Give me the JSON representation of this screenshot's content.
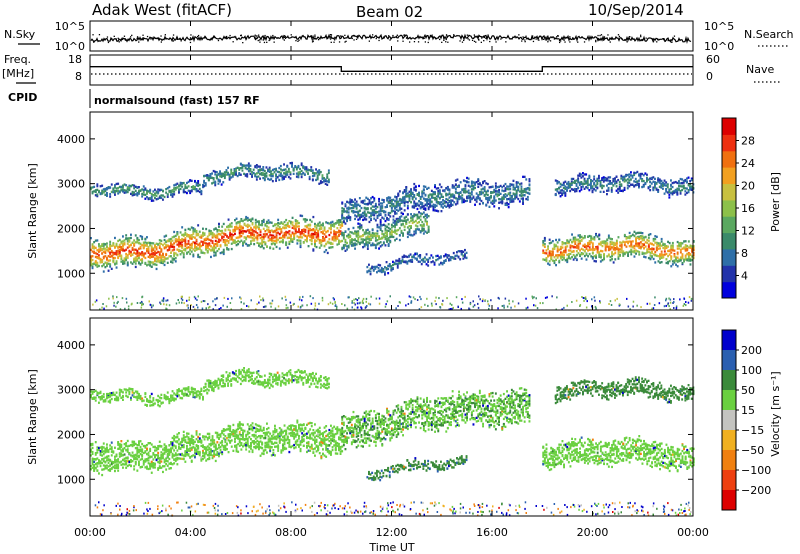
{
  "header": {
    "station": "Adak West (fitACF)",
    "beam": "Beam 02",
    "date": "10/Sep/2014"
  },
  "strips": {
    "nsky_label": "N.Sky",
    "nsearch_label": "N.Search",
    "nsky_ticks": [
      "10^5",
      "10^0"
    ],
    "nsearch_ticks": [
      "10^5",
      "10^0"
    ],
    "freq_label": "Freq.",
    "freq_unit": "[MHz]",
    "freq_ticks": [
      "18",
      "8"
    ],
    "nave_label": "Nave",
    "nave_ticks": [
      "60",
      "0"
    ],
    "cpid_label": "CPID",
    "cpid_text": "normalsound (fast) 157 RF"
  },
  "colors": {
    "power_scale": [
      "#0000dd",
      "#2233aa",
      "#2e6fa8",
      "#3a8a6a",
      "#5aa860",
      "#8cc04a",
      "#c8c040",
      "#f2a020",
      "#f07010",
      "#ee3010",
      "#dd0000"
    ],
    "velocity_scale": [
      "#0000cc",
      "#2a5fb0",
      "#3a8a3a",
      "#6ad040",
      "#c4c4c0",
      "#f0b020",
      "#f08010",
      "#ee4010",
      "#dd0000"
    ],
    "nsky_line": "#000000",
    "freq_line": "#000000"
  },
  "chart_data": [
    {
      "type": "heatmap",
      "panel": "power",
      "ylabel": "Slant Range [km]",
      "xlim": [
        "00:00",
        "24:00"
      ],
      "ylim": [
        180,
        4600
      ],
      "y_ticks": [
        1000,
        2000,
        3000,
        4000
      ],
      "colorbar": {
        "label": "Power [dB]",
        "range": [
          0,
          32
        ],
        "ticks": [
          4,
          8,
          12,
          16,
          20,
          24,
          28
        ]
      },
      "scatter_bands": [
        {
          "start": 0.0,
          "end": 10.0,
          "center_start": 1450,
          "center_end": 2000,
          "width": 700,
          "core_value": 26
        },
        {
          "start": 0.0,
          "end": 4.5,
          "center_start": 2900,
          "center_end": 2900,
          "width": 280,
          "core_value": 10
        },
        {
          "start": 4.5,
          "end": 9.5,
          "center_start": 3100,
          "center_end": 3300,
          "width": 350,
          "core_value": 9
        },
        {
          "start": 10.0,
          "end": 13.5,
          "center_start": 1800,
          "center_end": 2050,
          "width": 550,
          "core_value": 14
        },
        {
          "start": 10.0,
          "end": 17.5,
          "center_start": 2400,
          "center_end": 2900,
          "width": 600,
          "core_value": 7
        },
        {
          "start": 11.0,
          "end": 15.0,
          "center_start": 1150,
          "center_end": 1300,
          "width": 250,
          "core_value": 6
        },
        {
          "start": 18.0,
          "end": 24.0,
          "center_start": 1600,
          "center_end": 1450,
          "width": 600,
          "core_value": 24
        },
        {
          "start": 18.5,
          "end": 24.0,
          "center_start": 3000,
          "center_end": 2900,
          "width": 400,
          "core_value": 7
        }
      ]
    },
    {
      "type": "heatmap",
      "panel": "velocity",
      "ylabel": "Slant Range [km]",
      "xlabel": "Time UT",
      "xlim": [
        "00:00",
        "24:00"
      ],
      "ylim": [
        180,
        4600
      ],
      "y_ticks": [
        1000,
        2000,
        3000,
        4000
      ],
      "x_ticks": [
        "00:00",
        "04:00",
        "08:00",
        "12:00",
        "16:00",
        "20:00",
        "00:00"
      ],
      "colorbar": {
        "label": "Velocity [m s⁻¹]",
        "levels": [
          "200",
          "100",
          "50",
          "15",
          "−15",
          "−50",
          "−100",
          "−200"
        ]
      },
      "scatter_bands": [
        {
          "start": 0.0,
          "end": 10.0,
          "center_start": 1500,
          "center_end": 2000,
          "width": 700,
          "core_value": 0
        },
        {
          "start": 0.0,
          "end": 4.5,
          "center_start": 2900,
          "center_end": 2900,
          "width": 280,
          "core_value": 0
        },
        {
          "start": 4.5,
          "end": 9.5,
          "center_start": 3100,
          "center_end": 3300,
          "width": 350,
          "core_value": 0
        },
        {
          "start": 10.0,
          "end": 17.5,
          "center_start": 2100,
          "center_end": 2700,
          "width": 800,
          "core_value": 10
        },
        {
          "start": 11.0,
          "end": 15.0,
          "center_start": 1150,
          "center_end": 1300,
          "width": 250,
          "core_value": 40
        },
        {
          "start": 18.0,
          "end": 24.0,
          "center_start": 1650,
          "center_end": 1450,
          "width": 600,
          "core_value": 0
        },
        {
          "start": 18.5,
          "end": 24.0,
          "center_start": 3000,
          "center_end": 2900,
          "width": 400,
          "core_value": 30
        }
      ]
    }
  ],
  "freq_series": [
    {
      "x": 0.0,
      "y": 14.5
    },
    {
      "x": 10.0,
      "y": 14.5
    },
    {
      "x": 10.0,
      "y": 12.4
    },
    {
      "x": 18.0,
      "y": 12.4
    },
    {
      "x": 18.0,
      "y": 14.5
    },
    {
      "x": 24.0,
      "y": 14.5
    }
  ]
}
